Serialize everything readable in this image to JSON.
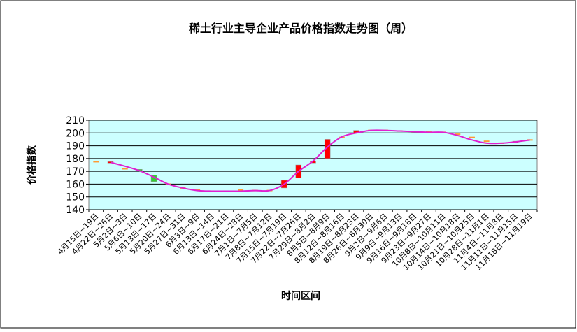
{
  "chart_data": {
    "type": "candlestick",
    "title": "稀土行业主导企业产品价格指数走势图（周）",
    "x_label": "时间区间",
    "y_label": "价格指数",
    "categories": [
      "4月15日~19日",
      "4月22日~26日",
      "5月2日~3日",
      "5月6日~10日",
      "5月13日~17日",
      "5月20日~24日",
      "5月27日~31日",
      "6月3日~9日",
      "6月13日~14日",
      "6月17日~21日",
      "6月24日~28日",
      "7月1日~7月5日",
      "7月8日~7月12日",
      "7月15日~7月19日",
      "7月22日~7月26日",
      "7月29日~8月2日",
      "8月5日~8月9日",
      "8月12日~8月16日",
      "8月19日~8月23日",
      "8月26日~8月30日",
      "9月2日~9月6日",
      "9月9日~9月13日",
      "9月16日~9月18日",
      "9月23日~9月27日",
      "10月8日~10月11日",
      "10月14日~10月18日",
      "10月21日~10月25日",
      "10月28日~11月1日",
      "11月4日~11月8日",
      "11月11日~11月15日",
      "11月18日~11月19日"
    ],
    "open": [
      177.5,
      176.5,
      172,
      171,
      167,
      160,
      157,
      155.5,
      154.5,
      154.5,
      155.5,
      155,
      155,
      157,
      165,
      176.5,
      180,
      196.5,
      200,
      202,
      202,
      201.5,
      201,
      201,
      200.5,
      199,
      196.5,
      193.5,
      192,
      192,
      194.5
    ],
    "close": [
      177.5,
      177,
      172,
      170,
      162,
      160,
      157,
      155.5,
      154.5,
      154.5,
      155.5,
      155,
      155,
      163,
      175,
      178,
      195,
      196.5,
      202,
      202,
      202,
      201.5,
      201,
      201,
      200.5,
      199,
      196.5,
      193.5,
      192,
      193,
      194.5
    ],
    "trend": [
      null,
      177,
      174,
      170.5,
      165.5,
      160,
      157,
      155,
      154.5,
      154.5,
      154.5,
      155,
      155,
      160,
      170,
      178,
      189,
      197,
      200,
      202,
      202,
      201.5,
      201,
      200.5,
      200.5,
      198,
      194.5,
      192,
      192,
      193,
      194.5
    ],
    "up_color": "#ff0000",
    "down_color": "#33cc33",
    "flat_color": "#ff9933",
    "line_color": "#e020d0",
    "plot_bg": "#ccffff",
    "ylim": [
      140,
      210
    ],
    "yticks": [
      140,
      150,
      160,
      170,
      180,
      190,
      200,
      210
    ],
    "grid": true
  }
}
